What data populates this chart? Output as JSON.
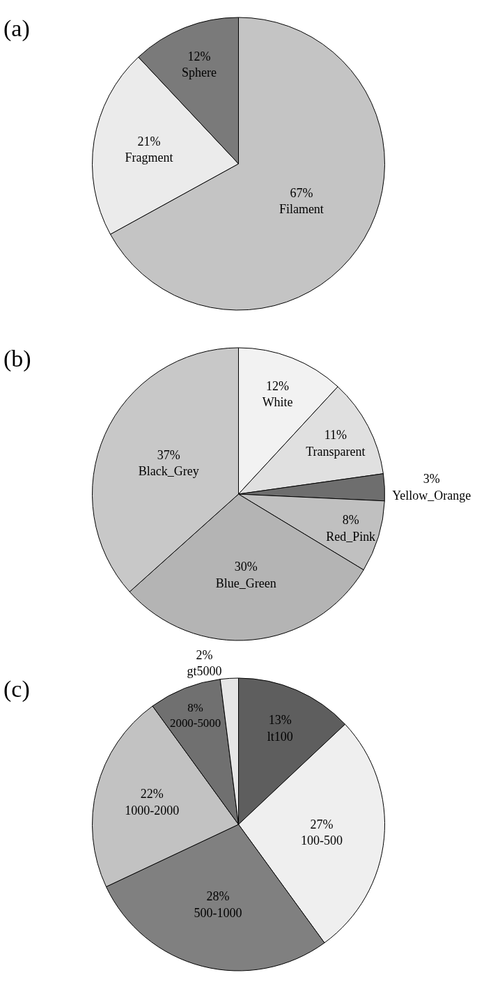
{
  "chart_data": [
    {
      "type": "pie",
      "title": "(a)",
      "categories": [
        "Filament",
        "Fragment",
        "Sphere"
      ],
      "values": [
        67,
        21,
        12
      ],
      "value_labels": [
        "67%",
        "21%",
        "12%"
      ],
      "colors": [
        "#c4c4c4",
        "#ebebeb",
        "#7a7a7a"
      ],
      "legend": false
    },
    {
      "type": "pie",
      "title": "(b)",
      "categories": [
        "White",
        "Transparent",
        "Yellow_Orange",
        "Red_Pink",
        "Blue_Green",
        "Black_Grey"
      ],
      "values": [
        12,
        11,
        3,
        8,
        30,
        37
      ],
      "value_labels": [
        "12%",
        "11%",
        "3%",
        "8%",
        "30%",
        "37%"
      ],
      "colors": [
        "#f2f2f2",
        "#e0e0e0",
        "#6e6e6e",
        "#c0c0c0",
        "#b4b4b4",
        "#c8c8c8"
      ],
      "legend": false
    },
    {
      "type": "pie",
      "title": "(c)",
      "categories": [
        "lt100",
        "100-500",
        "500-1000",
        "1000-2000",
        "2000-5000",
        "gt5000"
      ],
      "values": [
        13,
        27,
        28,
        22,
        8,
        2
      ],
      "value_labels": [
        "13%",
        "27%",
        "28%",
        "22%",
        "8%",
        "2%"
      ],
      "colors": [
        "#5e5e5e",
        "#efefef",
        "#808080",
        "#c2c2c2",
        "#707070",
        "#e6e6e6"
      ],
      "legend": false
    }
  ]
}
